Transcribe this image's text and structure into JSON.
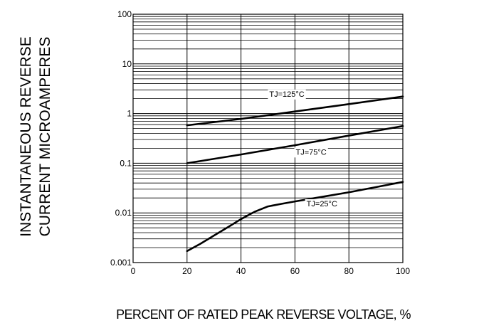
{
  "chart_data": {
    "type": "line",
    "title": "",
    "xlabel": "PERCENT  OF  RATED PEAK REVERSE VOLTAGE, %",
    "ylabel_lines": [
      "INSTANTANEOUS REVERSE",
      "CURRENT MICROAMPERES"
    ],
    "xlim": [
      0,
      100
    ],
    "ylim": [
      0.001,
      100
    ],
    "yscale": "log",
    "x_ticks": [
      0,
      20,
      40,
      60,
      80,
      100
    ],
    "y_ticks": [
      0.001,
      0.01,
      0.1,
      1,
      10,
      100
    ],
    "x_tick_labels": [
      "0",
      "20",
      "40",
      "60",
      "80",
      "100"
    ],
    "y_tick_labels": [
      "0.001",
      "0.01",
      "0.1",
      "1",
      "10",
      "100"
    ],
    "grid": true,
    "series": [
      {
        "name": "TJ=125°C",
        "x": [
          20,
          40,
          60,
          80,
          100
        ],
        "y": [
          0.58,
          0.78,
          1.1,
          1.55,
          2.2
        ]
      },
      {
        "name": "TJ=75°C",
        "x": [
          20,
          40,
          60,
          80,
          100
        ],
        "y": [
          0.1,
          0.15,
          0.23,
          0.36,
          0.56
        ]
      },
      {
        "name": "TJ=25°C",
        "x": [
          20,
          25,
          30,
          35,
          40,
          45,
          50,
          55,
          60,
          70,
          80,
          90,
          100
        ],
        "y": [
          0.0017,
          0.0024,
          0.0035,
          0.0051,
          0.0075,
          0.0105,
          0.0135,
          0.0152,
          0.017,
          0.021,
          0.026,
          0.033,
          0.042
        ]
      }
    ],
    "annotations": [
      {
        "series": "TJ=125°C",
        "text": "TJ=125°C",
        "x": 57,
        "y": 2.5
      },
      {
        "series": "TJ=75°C",
        "text": "TJ=75°C",
        "x": 66,
        "y": 0.17
      },
      {
        "series": "TJ=25°C",
        "text": "TJ=25°C",
        "x": 70,
        "y": 0.0155
      }
    ]
  }
}
